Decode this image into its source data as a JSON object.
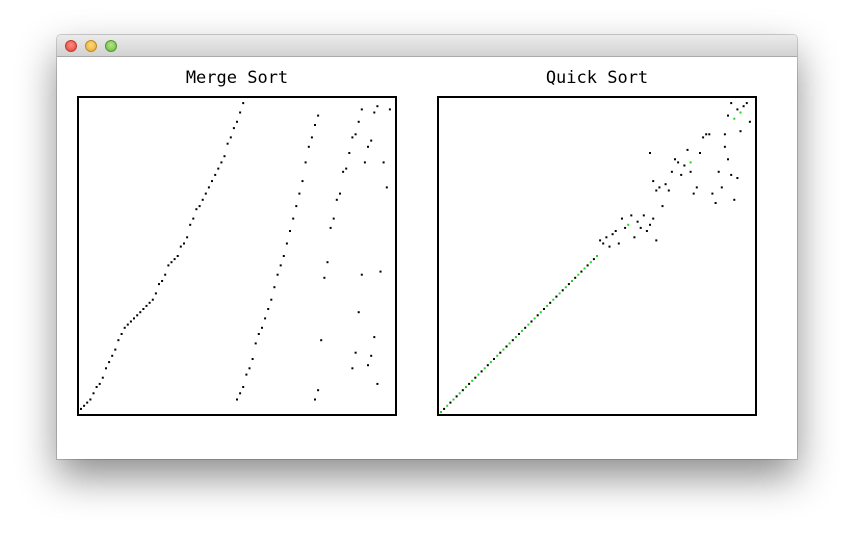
{
  "window": {
    "controls": [
      "close-icon",
      "minimize-icon",
      "zoom-icon"
    ]
  },
  "panels": {
    "merge": {
      "title": "Merge Sort"
    },
    "quick": {
      "title": "Quick Sort"
    }
  },
  "colors": {
    "point": "#000000",
    "sorted_point": "#1fd61f"
  },
  "chart_data": [
    {
      "type": "scatter",
      "title": "Merge Sort",
      "xlim": [
        0,
        100
      ],
      "ylim": [
        0,
        100
      ],
      "series": [
        {
          "points": [
            [
              0,
              1
            ],
            [
              1,
              2
            ],
            [
              2,
              3
            ],
            [
              3,
              4
            ],
            [
              4,
              6
            ],
            [
              5,
              8
            ],
            [
              6,
              9
            ],
            [
              7,
              11
            ],
            [
              8,
              14
            ],
            [
              9,
              16
            ],
            [
              10,
              18
            ],
            [
              11,
              20
            ],
            [
              12,
              23
            ],
            [
              13,
              25
            ],
            [
              14,
              27
            ],
            [
              15,
              28
            ],
            [
              16,
              29
            ],
            [
              17,
              30
            ],
            [
              18,
              31
            ],
            [
              19,
              32
            ],
            [
              20,
              33
            ],
            [
              21,
              34
            ],
            [
              22,
              35
            ],
            [
              23,
              36
            ],
            [
              24,
              38
            ],
            [
              25,
              41
            ],
            [
              26,
              42
            ],
            [
              27,
              44
            ],
            [
              28,
              47
            ],
            [
              29,
              48
            ],
            [
              30,
              49
            ],
            [
              31,
              50
            ],
            [
              32,
              53
            ],
            [
              33,
              54
            ],
            [
              34,
              56
            ],
            [
              35,
              60
            ],
            [
              36,
              62
            ],
            [
              37,
              65
            ],
            [
              38,
              66
            ],
            [
              39,
              68
            ],
            [
              40,
              70
            ],
            [
              41,
              72
            ],
            [
              42,
              74
            ],
            [
              43,
              76
            ],
            [
              44,
              78
            ],
            [
              45,
              80
            ],
            [
              46,
              82
            ],
            [
              47,
              86
            ],
            [
              48,
              88
            ],
            [
              49,
              91
            ],
            [
              50,
              93
            ],
            [
              51,
              96
            ],
            [
              52,
              99
            ],
            [
              50,
              4
            ],
            [
              51,
              6
            ],
            [
              52,
              8
            ],
            [
              53,
              12
            ],
            [
              54,
              14
            ],
            [
              55,
              17
            ],
            [
              56,
              22
            ],
            [
              57,
              25
            ],
            [
              58,
              27
            ],
            [
              59,
              30
            ],
            [
              60,
              33
            ],
            [
              61,
              36
            ],
            [
              62,
              40
            ],
            [
              63,
              44
            ],
            [
              64,
              47
            ],
            [
              65,
              50
            ],
            [
              66,
              54
            ],
            [
              67,
              58
            ],
            [
              68,
              62
            ],
            [
              69,
              66
            ],
            [
              70,
              70
            ],
            [
              71,
              74
            ],
            [
              72,
              80
            ],
            [
              73,
              85
            ],
            [
              74,
              88
            ],
            [
              75,
              92
            ],
            [
              76,
              95
            ],
            [
              75,
              4
            ],
            [
              76,
              7
            ],
            [
              77,
              23
            ],
            [
              78,
              43
            ],
            [
              79,
              48
            ],
            [
              80,
              59
            ],
            [
              81,
              62
            ],
            [
              82,
              68
            ],
            [
              83,
              70
            ],
            [
              84,
              77
            ],
            [
              85,
              78
            ],
            [
              86,
              83
            ],
            [
              87,
              88
            ],
            [
              88,
              89
            ],
            [
              89,
              93
            ],
            [
              90,
              97
            ],
            [
              87,
              14
            ],
            [
              88,
              19
            ],
            [
              89,
              32
            ],
            [
              90,
              44
            ],
            [
              91,
              80
            ],
            [
              92,
              85
            ],
            [
              93,
              87
            ],
            [
              94,
              96
            ],
            [
              95,
              98
            ],
            [
              92,
              15
            ],
            [
              93,
              18
            ],
            [
              94,
              24
            ],
            [
              95,
              9
            ],
            [
              96,
              45
            ],
            [
              97,
              80
            ],
            [
              98,
              72
            ],
            [
              99,
              97
            ]
          ]
        }
      ]
    },
    {
      "type": "scatter",
      "title": "Quick Sort",
      "xlim": [
        0,
        100
      ],
      "ylim": [
        0,
        100
      ],
      "series": [
        {
          "sorted": true,
          "points": [
            [
              0,
              0
            ],
            [
              2,
              2
            ],
            [
              4,
              4
            ],
            [
              6,
              6
            ],
            [
              8,
              8
            ],
            [
              10,
              10
            ],
            [
              12,
              12
            ],
            [
              14,
              14
            ],
            [
              16,
              16
            ],
            [
              18,
              18
            ],
            [
              20,
              20
            ],
            [
              22,
              22
            ],
            [
              24,
              24
            ],
            [
              26,
              26
            ],
            [
              28,
              28
            ],
            [
              30,
              30
            ],
            [
              32,
              32
            ],
            [
              34,
              34
            ],
            [
              36,
              36
            ],
            [
              38,
              38
            ],
            [
              40,
              40
            ],
            [
              42,
              42
            ],
            [
              44,
              44
            ],
            [
              46,
              46
            ],
            [
              48,
              48
            ],
            [
              50,
              50
            ],
            [
              60,
              60
            ],
            [
              80,
              80
            ],
            [
              94,
              94
            ],
            [
              96,
              96
            ]
          ]
        },
        {
          "sorted": false,
          "points": [
            [
              1,
              1
            ],
            [
              3,
              3
            ],
            [
              5,
              5
            ],
            [
              7,
              7
            ],
            [
              9,
              9
            ],
            [
              11,
              11
            ],
            [
              13,
              13
            ],
            [
              15,
              15
            ],
            [
              17,
              17
            ],
            [
              19,
              19
            ],
            [
              21,
              21
            ],
            [
              23,
              23
            ],
            [
              25,
              25
            ],
            [
              27,
              27
            ],
            [
              29,
              29
            ],
            [
              31,
              31
            ],
            [
              33,
              33
            ],
            [
              35,
              35
            ],
            [
              37,
              37
            ],
            [
              39,
              39
            ],
            [
              41,
              41
            ],
            [
              43,
              43
            ],
            [
              45,
              45
            ],
            [
              47,
              47
            ],
            [
              49,
              49
            ],
            [
              51,
              55
            ],
            [
              52,
              54
            ],
            [
              53,
              56
            ],
            [
              54,
              53
            ],
            [
              55,
              57
            ],
            [
              56,
              58
            ],
            [
              57,
              54
            ],
            [
              58,
              62
            ],
            [
              59,
              59
            ],
            [
              61,
              63
            ],
            [
              62,
              56
            ],
            [
              63,
              61
            ],
            [
              64,
              59
            ],
            [
              65,
              63
            ],
            [
              66,
              58
            ],
            [
              67,
              60
            ],
            [
              68,
              62
            ],
            [
              69,
              55
            ],
            [
              67,
              83
            ],
            [
              68,
              74
            ],
            [
              69,
              71
            ],
            [
              70,
              72
            ],
            [
              71,
              66
            ],
            [
              72,
              73
            ],
            [
              73,
              71
            ],
            [
              74,
              77
            ],
            [
              75,
              81
            ],
            [
              76,
              80
            ],
            [
              77,
              76
            ],
            [
              78,
              79
            ],
            [
              79,
              84
            ],
            [
              80,
              77
            ],
            [
              81,
              70
            ],
            [
              82,
              72
            ],
            [
              83,
              83
            ],
            [
              84,
              88
            ],
            [
              85,
              89
            ],
            [
              86,
              89
            ],
            [
              87,
              70
            ],
            [
              88,
              67
            ],
            [
              89,
              77
            ],
            [
              90,
              72
            ],
            [
              91,
              85
            ],
            [
              92,
              81
            ],
            [
              93,
              76
            ],
            [
              94,
              68
            ],
            [
              95,
              75
            ],
            [
              91,
              89
            ],
            [
              92,
              95
            ],
            [
              93,
              99
            ],
            [
              95,
              97
            ],
            [
              96,
              90
            ],
            [
              97,
              98
            ],
            [
              98,
              99
            ],
            [
              99,
              93
            ]
          ]
        }
      ]
    }
  ]
}
